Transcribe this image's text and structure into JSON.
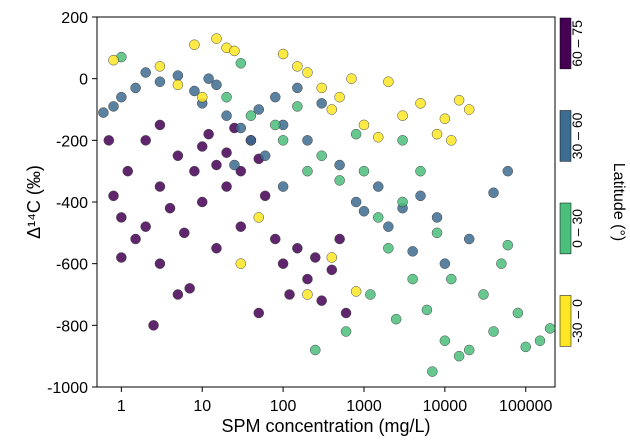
{
  "chart_data": {
    "type": "scatter",
    "x_label": "SPM concentration (mg/L)",
    "y_label": "Δ¹⁴C (‰)",
    "legend_title": "Latitude (°)",
    "x_log": true,
    "xlim": [
      0.5,
      230000
    ],
    "xticks": [
      1,
      10,
      100,
      1000,
      10000,
      100000
    ],
    "ylim": [
      -1000,
      200
    ],
    "yticks": [
      -1000,
      -800,
      -600,
      -400,
      -200,
      0,
      200
    ],
    "series": [
      {
        "name": "60 – 75",
        "color": "#440154",
        "x": [
          0.8,
          1,
          1.2,
          1.5,
          2,
          2,
          3,
          3,
          4,
          5,
          5,
          6,
          8,
          10,
          10,
          12,
          15,
          15,
          20,
          20,
          25,
          30,
          30,
          40,
          50,
          60,
          80,
          100,
          120,
          150,
          200,
          250,
          300,
          400,
          500,
          600,
          1,
          2.5,
          7,
          50,
          3,
          0.7
        ],
        "y": [
          -380,
          -450,
          -300,
          -520,
          -200,
          -480,
          -350,
          -600,
          -420,
          -250,
          -700,
          -500,
          -300,
          -220,
          -400,
          -180,
          -280,
          -550,
          -240,
          -350,
          -160,
          -300,
          -480,
          -200,
          -260,
          -380,
          -520,
          -600,
          -700,
          -550,
          -650,
          -580,
          -720,
          -620,
          -520,
          -760,
          -580,
          -800,
          -680,
          -760,
          -150,
          -200
        ]
      },
      {
        "name": "30 – 60",
        "color": "#3e6c90",
        "x": [
          0.6,
          0.8,
          1,
          1.5,
          3,
          5,
          8,
          10,
          15,
          20,
          30,
          40,
          50,
          60,
          80,
          100,
          150,
          200,
          300,
          500,
          800,
          1000,
          1500,
          2000,
          3000,
          4000,
          5000,
          8000,
          10000,
          20000,
          40000,
          60000,
          100,
          25,
          12,
          2
        ],
        "y": [
          -110,
          -90,
          -60,
          -30,
          -10,
          10,
          -40,
          -80,
          -20,
          -120,
          -160,
          -200,
          -100,
          -250,
          -60,
          -150,
          -30,
          -200,
          -80,
          -280,
          -400,
          -430,
          -350,
          -480,
          -420,
          -560,
          -380,
          -450,
          -600,
          -520,
          -370,
          -300,
          -350,
          -280,
          0,
          20
        ]
      },
      {
        "name": "0 – 30",
        "color": "#4cbf7c",
        "x": [
          1,
          30,
          80,
          100,
          150,
          200,
          300,
          500,
          800,
          1000,
          1500,
          2000,
          3000,
          4000,
          5000,
          6000,
          8000,
          10000,
          12000,
          15000,
          20000,
          30000,
          40000,
          50000,
          80000,
          100000,
          150000,
          200000,
          60000,
          7000,
          2500,
          1200,
          600,
          250,
          40,
          20,
          3000
        ],
        "y": [
          70,
          50,
          -150,
          -200,
          -90,
          -300,
          -250,
          -330,
          -180,
          -300,
          -450,
          -550,
          -400,
          -650,
          -300,
          -750,
          -500,
          -850,
          -650,
          -900,
          -880,
          -700,
          -820,
          -600,
          -760,
          -870,
          -850,
          -810,
          -540,
          -950,
          -780,
          -700,
          -820,
          -880,
          -120,
          -60,
          -200
        ]
      },
      {
        "name": "-30 – 0",
        "color": "#fde725",
        "x": [
          0.8,
          3,
          8,
          15,
          20,
          25,
          5,
          10,
          100,
          150,
          200,
          300,
          400,
          500,
          700,
          1000,
          2000,
          3000,
          5000,
          8000,
          10000,
          15000,
          20000,
          12000,
          50,
          200,
          800,
          30,
          400,
          1500
        ],
        "y": [
          60,
          40,
          110,
          130,
          100,
          90,
          -20,
          -60,
          80,
          40,
          20,
          -30,
          -100,
          -60,
          0,
          -150,
          -10,
          -120,
          -80,
          -180,
          -130,
          -70,
          -100,
          -200,
          -450,
          -700,
          -690,
          -600,
          -580,
          -190
        ]
      }
    ]
  }
}
